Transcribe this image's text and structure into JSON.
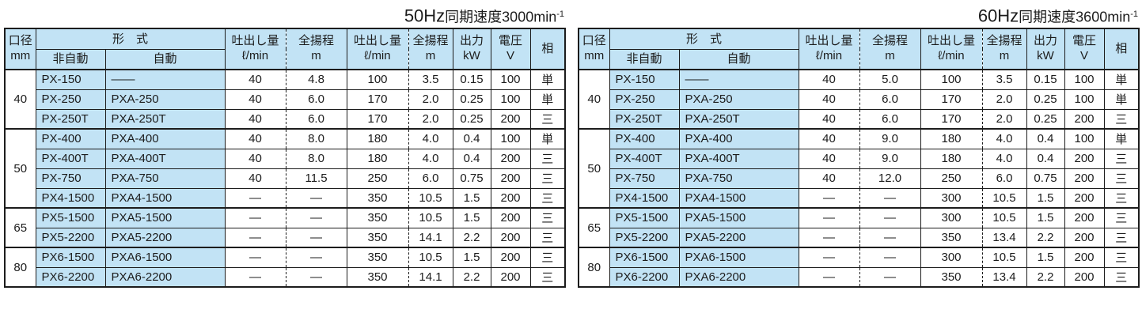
{
  "colors": {
    "header_bg": "#c2e3f5",
    "border": "#1c1c1c",
    "text": "#1c1c1c",
    "background": "#ffffff"
  },
  "columns": {
    "bore_l1": "口径",
    "bore_l2": "mm",
    "model_group": "形　式",
    "model_manual": "非自動",
    "model_auto": "自動",
    "discharge_l1": "吐出し量",
    "discharge_l2": "ℓ/min",
    "head_l1": "全揚程",
    "head_l2": "m",
    "output_l1": "出力",
    "output_l2": "kW",
    "voltage_l1": "電圧",
    "voltage_l2": "V",
    "phase": "相"
  },
  "tables": [
    {
      "title": {
        "prefix": "50Hz",
        "rest": "同期速度3000min",
        "sup": "-1"
      },
      "groups": [
        {
          "bore": "40",
          "rows": [
            [
              "PX-150",
              "——",
              "40",
              "4.8",
              "100",
              "3.5",
              "0.15",
              "100",
              "単"
            ],
            [
              "PX-250",
              "PXA-250",
              "40",
              "6.0",
              "170",
              "2.0",
              "0.25",
              "100",
              "単"
            ],
            [
              "PX-250T",
              "PXA-250T",
              "40",
              "6.0",
              "170",
              "2.0",
              "0.25",
              "200",
              "三"
            ]
          ]
        },
        {
          "bore": "50",
          "rows": [
            [
              "PX-400",
              "PXA-400",
              "40",
              "8.0",
              "180",
              "4.0",
              "0.4",
              "100",
              "単"
            ],
            [
              "PX-400T",
              "PXA-400T",
              "40",
              "8.0",
              "180",
              "4.0",
              "0.4",
              "200",
              "三"
            ],
            [
              "PX-750",
              "PXA-750",
              "40",
              "11.5",
              "250",
              "6.0",
              "0.75",
              "200",
              "三"
            ],
            [
              "PX4-1500",
              "PXA4-1500",
              "—",
              "—",
              "350",
              "10.5",
              "1.5",
              "200",
              "三"
            ]
          ]
        },
        {
          "bore": "65",
          "rows": [
            [
              "PX5-1500",
              "PXA5-1500",
              "—",
              "—",
              "350",
              "10.5",
              "1.5",
              "200",
              "三"
            ],
            [
              "PX5-2200",
              "PXA5-2200",
              "—",
              "—",
              "350",
              "14.1",
              "2.2",
              "200",
              "三"
            ]
          ]
        },
        {
          "bore": "80",
          "rows": [
            [
              "PX6-1500",
              "PXA6-1500",
              "—",
              "—",
              "350",
              "10.5",
              "1.5",
              "200",
              "三"
            ],
            [
              "PX6-2200",
              "PXA6-2200",
              "—",
              "—",
              "350",
              "14.1",
              "2.2",
              "200",
              "三"
            ]
          ]
        }
      ]
    },
    {
      "title": {
        "prefix": "60Hz",
        "rest": "同期速度3600min",
        "sup": "-1"
      },
      "groups": [
        {
          "bore": "40",
          "rows": [
            [
              "PX-150",
              "——",
              "40",
              "5.0",
              "100",
              "3.5",
              "0.15",
              "100",
              "単"
            ],
            [
              "PX-250",
              "PXA-250",
              "40",
              "6.0",
              "170",
              "2.0",
              "0.25",
              "100",
              "単"
            ],
            [
              "PX-250T",
              "PXA-250T",
              "40",
              "6.0",
              "170",
              "2.0",
              "0.25",
              "200",
              "三"
            ]
          ]
        },
        {
          "bore": "50",
          "rows": [
            [
              "PX-400",
              "PXA-400",
              "40",
              "9.0",
              "180",
              "4.0",
              "0.4",
              "100",
              "単"
            ],
            [
              "PX-400T",
              "PXA-400T",
              "40",
              "9.0",
              "180",
              "4.0",
              "0.4",
              "200",
              "三"
            ],
            [
              "PX-750",
              "PXA-750",
              "40",
              "12.0",
              "250",
              "6.0",
              "0.75",
              "200",
              "三"
            ],
            [
              "PX4-1500",
              "PXA4-1500",
              "—",
              "—",
              "300",
              "10.5",
              "1.5",
              "200",
              "三"
            ]
          ]
        },
        {
          "bore": "65",
          "rows": [
            [
              "PX5-1500",
              "PXA5-1500",
              "—",
              "—",
              "300",
              "10.5",
              "1.5",
              "200",
              "三"
            ],
            [
              "PX5-2200",
              "PXA5-2200",
              "—",
              "—",
              "350",
              "13.4",
              "2.2",
              "200",
              "三"
            ]
          ]
        },
        {
          "bore": "80",
          "rows": [
            [
              "PX6-1500",
              "PXA6-1500",
              "—",
              "—",
              "300",
              "10.5",
              "1.5",
              "200",
              "三"
            ],
            [
              "PX6-2200",
              "PXA6-2200",
              "—",
              "—",
              "350",
              "13.4",
              "2.2",
              "200",
              "三"
            ]
          ]
        }
      ]
    }
  ]
}
